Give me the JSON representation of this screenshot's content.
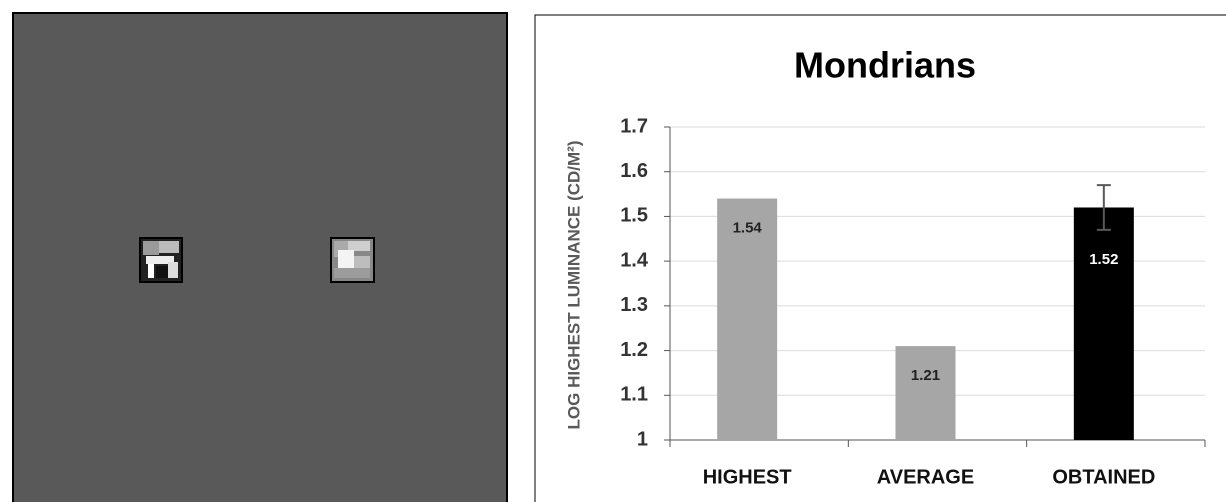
{
  "chart_data": {
    "type": "bar",
    "title": "Mondrians",
    "ylabel": "LOG HIGHEST LUMINANCE (CD/M²)",
    "categories": [
      "HIGHEST",
      "AVERAGE",
      "OBTAINED"
    ],
    "values": [
      1.54,
      1.21,
      1.52
    ],
    "errors": [
      null,
      null,
      0.05
    ],
    "colors": [
      "#a6a6a6",
      "#a6a6a6",
      "#000000"
    ],
    "ylim": [
      1,
      1.7
    ],
    "yticks": [
      1,
      1.1,
      1.2,
      1.3,
      1.4,
      1.5,
      1.6,
      1.7
    ],
    "grid": true
  }
}
